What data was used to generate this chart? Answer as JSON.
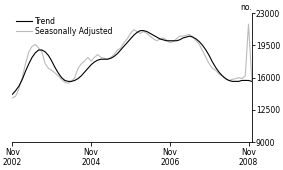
{
  "title": "",
  "ylabel_right": "no.",
  "xlabel": "",
  "xlim": [
    0,
    73
  ],
  "ylim": [
    9000,
    23000
  ],
  "yticks": [
    9000,
    12500,
    16000,
    19500,
    23000
  ],
  "xtick_positions": [
    0,
    24,
    48,
    72
  ],
  "xtick_labels": [
    "Nov\n2002",
    "Nov\n2004",
    "Nov\n2006",
    "Nov\n2008"
  ],
  "trend_color": "#000000",
  "sa_color": "#bbbbbb",
  "trend_linewidth": 0.8,
  "sa_linewidth": 0.8,
  "legend_labels": [
    "Trend",
    "Seasonally Adjusted"
  ],
  "background_color": "#ffffff",
  "trend_data": [
    14200,
    14600,
    15100,
    15800,
    16700,
    17500,
    18200,
    18700,
    19000,
    19000,
    18800,
    18400,
    17800,
    17100,
    16500,
    16000,
    15700,
    15600,
    15600,
    15700,
    15900,
    16200,
    16600,
    17000,
    17400,
    17700,
    17900,
    18000,
    18000,
    18000,
    18100,
    18300,
    18600,
    19000,
    19400,
    19800,
    20200,
    20600,
    20900,
    21100,
    21100,
    21000,
    20800,
    20600,
    20400,
    20200,
    20100,
    20000,
    20000,
    20000,
    20000,
    20100,
    20300,
    20400,
    20500,
    20400,
    20200,
    19900,
    19500,
    19000,
    18400,
    17700,
    17100,
    16600,
    16200,
    15900,
    15700,
    15600,
    15600,
    15600,
    15700,
    15700,
    15700,
    15600
  ],
  "sa_data": [
    13800,
    14000,
    14800,
    16000,
    17500,
    18800,
    19400,
    19600,
    19200,
    18800,
    17500,
    17000,
    16800,
    16500,
    16200,
    15800,
    15500,
    15400,
    15600,
    16000,
    17000,
    17500,
    17800,
    18200,
    17800,
    18200,
    18500,
    18200,
    18100,
    18000,
    18200,
    18500,
    19000,
    19200,
    19800,
    20200,
    20800,
    21200,
    21000,
    20800,
    21000,
    20800,
    20500,
    20200,
    20000,
    20200,
    20300,
    20100,
    19800,
    19900,
    20200,
    20500,
    20500,
    20600,
    20700,
    20400,
    20000,
    19600,
    18900,
    18200,
    17500,
    17000,
    16800,
    16400,
    16200,
    15900,
    15700,
    15800,
    15900,
    16000,
    15900,
    16200,
    21800,
    15800
  ]
}
